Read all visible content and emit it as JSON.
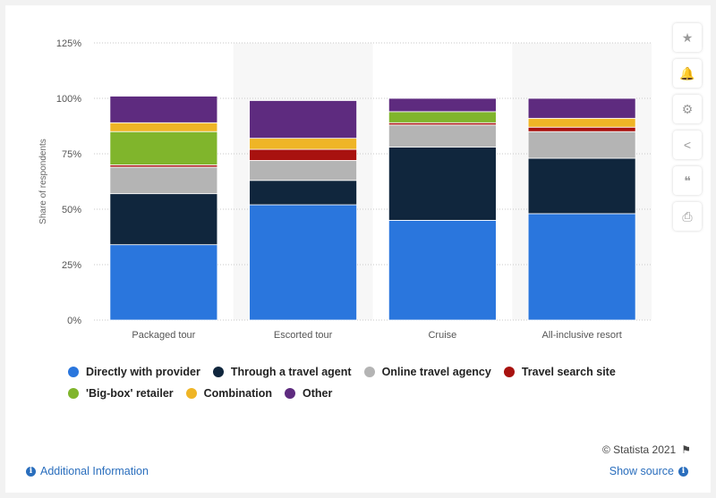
{
  "chart_data": {
    "type": "bar",
    "stacked": true,
    "categories": [
      "Packaged tour",
      "Escorted tour",
      "Cruise",
      "All-inclusive resort"
    ],
    "series": [
      {
        "name": "Directly with provider",
        "color": "#2a76dd",
        "values": [
          34,
          52,
          45,
          48
        ]
      },
      {
        "name": "Through a travel agent",
        "color": "#10263d",
        "values": [
          23,
          11,
          33,
          25
        ]
      },
      {
        "name": "Online travel agency",
        "color": "#b4b4b4",
        "values": [
          12,
          9,
          10,
          12
        ]
      },
      {
        "name": "Travel search site",
        "color": "#a8120f",
        "values": [
          1,
          5,
          1,
          2
        ]
      },
      {
        "name": "'Big-box' retailer",
        "color": "#80b52c",
        "values": [
          15,
          0,
          5,
          0
        ]
      },
      {
        "name": "Combination",
        "color": "#efb526",
        "values": [
          4,
          5,
          0,
          4
        ]
      },
      {
        "name": "Other",
        "color": "#5e2b7f",
        "values": [
          12,
          17,
          6,
          9
        ]
      }
    ],
    "ylabel": "Share of respondents",
    "xlabel": "",
    "ylim": [
      0,
      125
    ],
    "yticks": [
      0,
      25,
      50,
      75,
      100,
      125
    ],
    "ytick_labels": [
      "0%",
      "25%",
      "50%",
      "75%",
      "100%",
      "125%"
    ],
    "grid": true,
    "legend_position": "bottom"
  },
  "toolbar": {
    "buttons": [
      {
        "name": "star-icon",
        "glyph": "★"
      },
      {
        "name": "bell-icon",
        "glyph": "🔔"
      },
      {
        "name": "gear-icon",
        "glyph": "⚙"
      },
      {
        "name": "share-icon",
        "glyph": "<"
      },
      {
        "name": "quote-icon",
        "glyph": "❝"
      },
      {
        "name": "print-icon",
        "glyph": "⎙"
      }
    ]
  },
  "footer": {
    "credit": "© Statista 2021",
    "additional_info": "Additional Information",
    "show_source": "Show source"
  }
}
